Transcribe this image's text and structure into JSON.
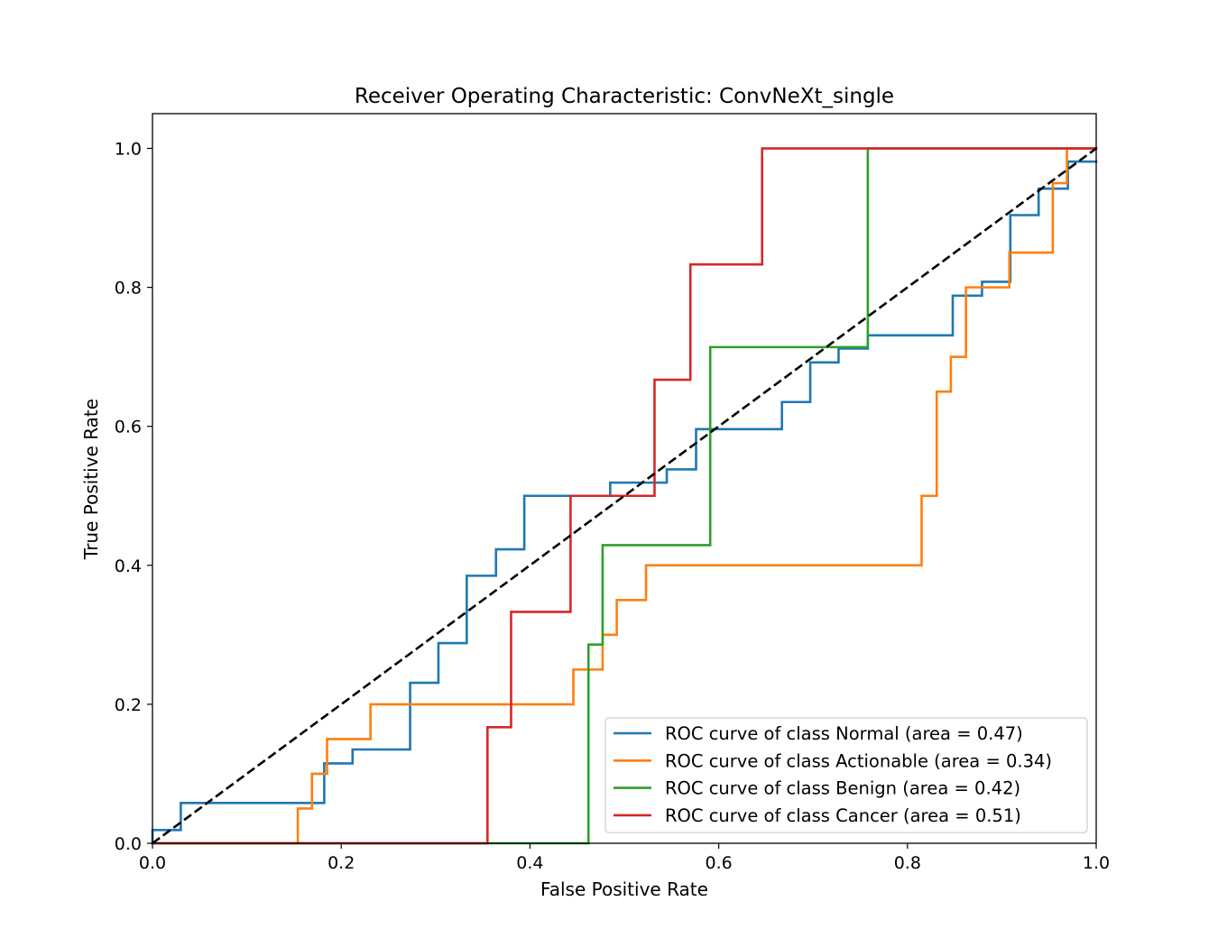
{
  "chart_data": {
    "type": "line",
    "title": "Receiver Operating Characteristic: ConvNeXt_single",
    "xlabel": "False Positive Rate",
    "ylabel": "True Positive Rate",
    "xlim": [
      0.0,
      1.0
    ],
    "ylim": [
      0.0,
      1.05
    ],
    "xticks": [
      "0.0",
      "0.2",
      "0.4",
      "0.6",
      "0.8",
      "1.0"
    ],
    "yticks": [
      "0.0",
      "0.2",
      "0.4",
      "0.6",
      "0.8",
      "1.0"
    ],
    "grid": false,
    "legend_position": "lower right",
    "series": [
      {
        "name": "ROC curve of class Normal (area = 0.47)",
        "color": "#1f77b4",
        "x": [
          0,
          0,
          0.03,
          0.03,
          0.182,
          0.182,
          0.212,
          0.212,
          0.273,
          0.273,
          0.303,
          0.303,
          0.333,
          0.333,
          0.364,
          0.364,
          0.394,
          0.394,
          0.485,
          0.485,
          0.545,
          0.545,
          0.576,
          0.576,
          0.667,
          0.667,
          0.697,
          0.697,
          0.727,
          0.727,
          0.758,
          0.758,
          0.848,
          0.848,
          0.879,
          0.879,
          0.909,
          0.909,
          0.939,
          0.939,
          0.97,
          0.97,
          1.0
        ],
        "y": [
          0,
          0.019,
          0.019,
          0.058,
          0.058,
          0.115,
          0.115,
          0.135,
          0.135,
          0.231,
          0.231,
          0.288,
          0.288,
          0.385,
          0.385,
          0.423,
          0.423,
          0.5,
          0.5,
          0.519,
          0.519,
          0.538,
          0.538,
          0.596,
          0.596,
          0.635,
          0.635,
          0.692,
          0.692,
          0.712,
          0.712,
          0.731,
          0.731,
          0.788,
          0.788,
          0.808,
          0.808,
          0.904,
          0.904,
          0.942,
          0.942,
          0.981,
          0.981
        ]
      },
      {
        "name": "ROC curve of class Actionable (area = 0.34)",
        "color": "#ff7f0e",
        "x": [
          0,
          0.154,
          0.154,
          0.169,
          0.169,
          0.185,
          0.185,
          0.231,
          0.231,
          0.446,
          0.446,
          0.477,
          0.477,
          0.492,
          0.492,
          0.523,
          0.523,
          0.815,
          0.815,
          0.831,
          0.831,
          0.846,
          0.846,
          0.862,
          0.862,
          0.908,
          0.908,
          0.954,
          0.954,
          0.969,
          0.969,
          1.0
        ],
        "y": [
          0,
          0,
          0.05,
          0.05,
          0.1,
          0.1,
          0.15,
          0.15,
          0.2,
          0.2,
          0.25,
          0.25,
          0.3,
          0.3,
          0.35,
          0.35,
          0.4,
          0.4,
          0.5,
          0.5,
          0.65,
          0.65,
          0.7,
          0.7,
          0.8,
          0.8,
          0.85,
          0.85,
          0.95,
          0.95,
          1.0,
          1.0
        ]
      },
      {
        "name": "ROC curve of class Benign (area = 0.42)",
        "color": "#2ca02c",
        "x": [
          0,
          0.462,
          0.462,
          0.477,
          0.477,
          0.591,
          0.591,
          0.758,
          0.758,
          1.0
        ],
        "y": [
          0,
          0,
          0.286,
          0.286,
          0.429,
          0.429,
          0.714,
          0.714,
          1.0,
          1.0
        ]
      },
      {
        "name": "ROC curve of class Cancer (area = 0.51)",
        "color": "#d62728",
        "x": [
          0,
          0.355,
          0.355,
          0.38,
          0.38,
          0.443,
          0.443,
          0.532,
          0.532,
          0.57,
          0.57,
          0.646,
          0.646,
          1.0
        ],
        "y": [
          0,
          0,
          0.167,
          0.167,
          0.333,
          0.333,
          0.5,
          0.5,
          0.667,
          0.667,
          0.833,
          0.833,
          1.0,
          1.0
        ]
      }
    ],
    "reference_line": {
      "x": [
        0,
        1
      ],
      "y": [
        0,
        1
      ],
      "style": "dashed",
      "color": "#000000"
    }
  }
}
